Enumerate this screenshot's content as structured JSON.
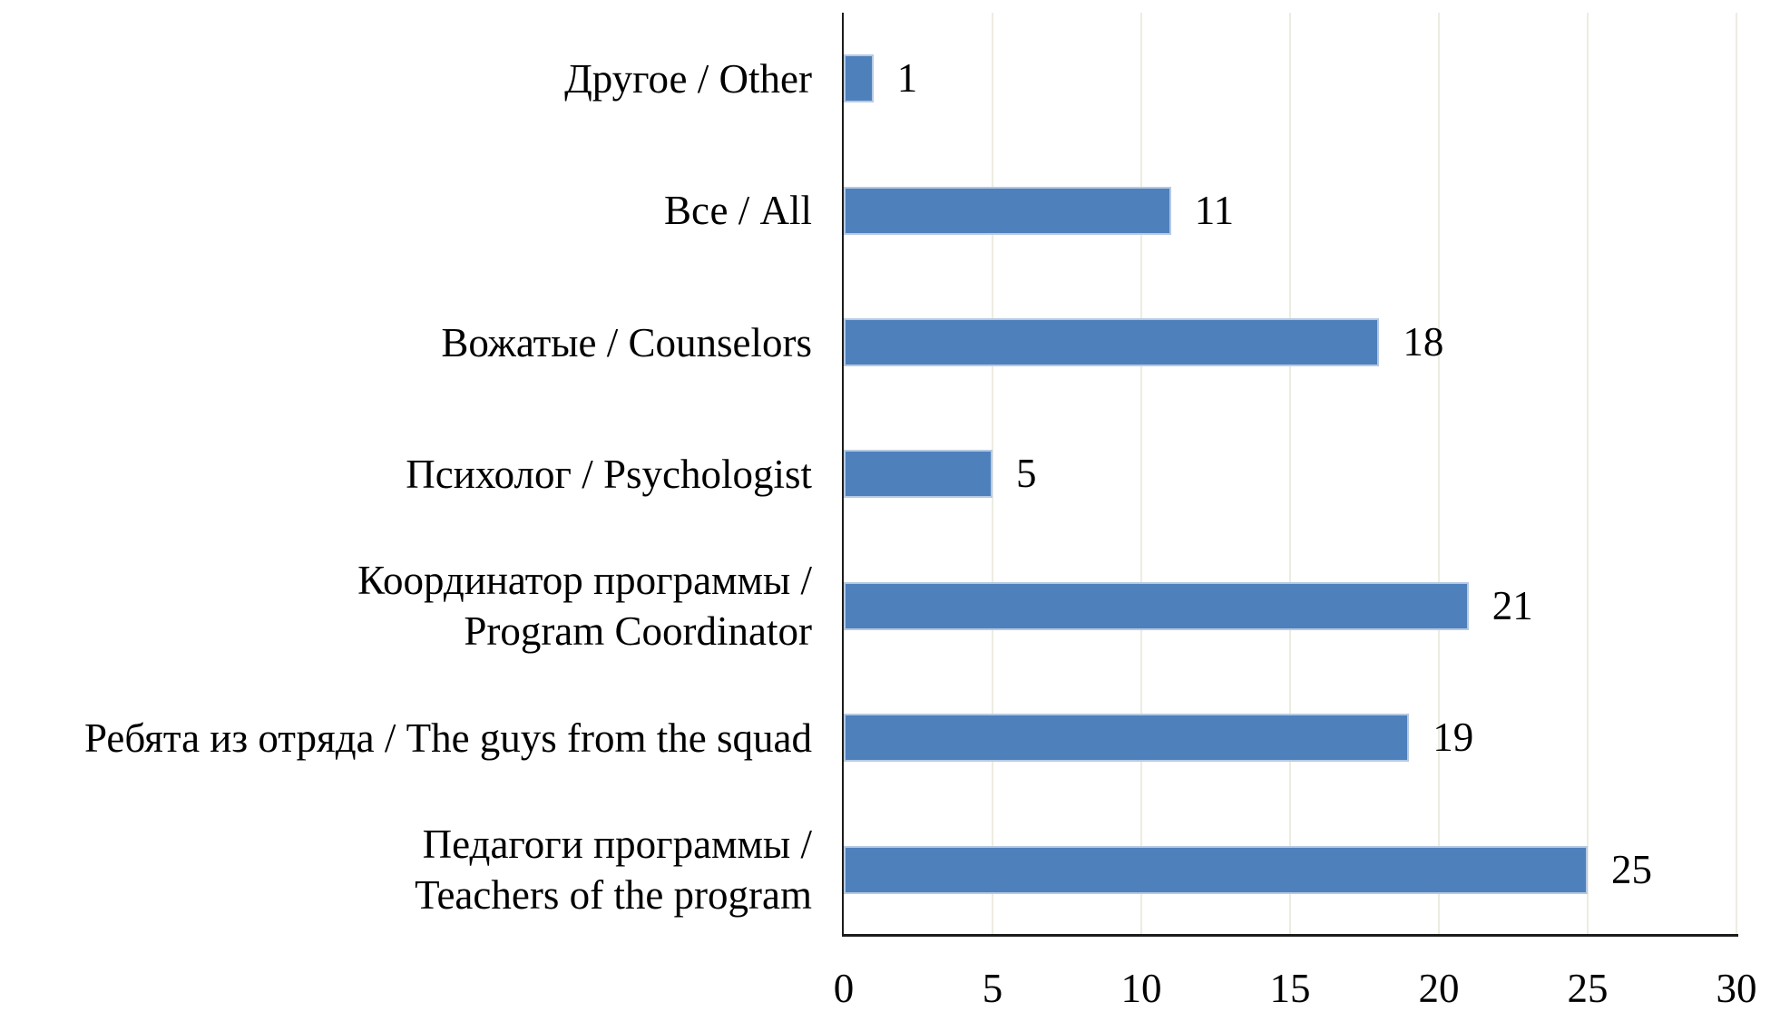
{
  "chart_data": {
    "type": "bar",
    "orientation": "horizontal",
    "title": "",
    "xlabel": "",
    "ylabel": "",
    "legend": "none",
    "grid": "vertical gridlines every 5 units",
    "xlim": [
      0,
      30
    ],
    "x_ticks": [
      0,
      5,
      10,
      15,
      20,
      25,
      30
    ],
    "categories": [
      "Другое / Other",
      "Все / All",
      "Вожатые / Counselors",
      "Психолог / Psychologist",
      "Координатор программы /\nProgram Coordinator",
      "Ребята из отряда / The guys from the squad",
      "Педагоги программы /\nTeachers of the program"
    ],
    "values": [
      1,
      11,
      18,
      5,
      21,
      19,
      25
    ],
    "value_labels": [
      "1",
      "11",
      "18",
      "5",
      "21",
      "19",
      "25"
    ],
    "colors": {
      "bar_fill": "#4E80BC",
      "bar_border": "#B7C9E2",
      "gridline": "#EDECE1",
      "axis_line": "#1c1c1c",
      "text": "#000000",
      "background": "#ffffff"
    }
  }
}
